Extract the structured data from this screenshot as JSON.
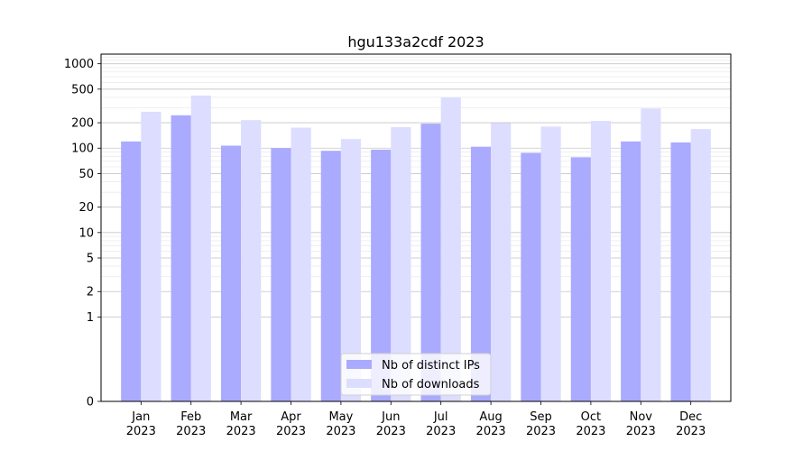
{
  "chart_data": {
    "type": "bar",
    "title": "hgu133a2cdf 2023",
    "xlabel": "",
    "ylabel": "",
    "yscale": "symlog",
    "ylim": [
      0,
      1300
    ],
    "yticks": [
      0,
      1,
      2,
      5,
      10,
      20,
      50,
      100,
      200,
      500,
      1000
    ],
    "grid": true,
    "legend_position": "bottom-center",
    "categories": [
      "Jan\n2023",
      "Feb\n2023",
      "Mar\n2023",
      "Apr\n2023",
      "May\n2023",
      "Jun\n2023",
      "Jul\n2023",
      "Aug\n2023",
      "Sep\n2023",
      "Oct\n2023",
      "Nov\n2023",
      "Dec\n2023"
    ],
    "series": [
      {
        "name": "Nb of distinct IPs",
        "color": "#aaaaff",
        "values": [
          120,
          245,
          107,
          100,
          93,
          96,
          195,
          104,
          88,
          78,
          120,
          117
        ]
      },
      {
        "name": "Nb of downloads",
        "color": "#ddddff",
        "values": [
          270,
          420,
          215,
          175,
          128,
          177,
          400,
          198,
          180,
          210,
          295,
          168
        ]
      }
    ]
  }
}
